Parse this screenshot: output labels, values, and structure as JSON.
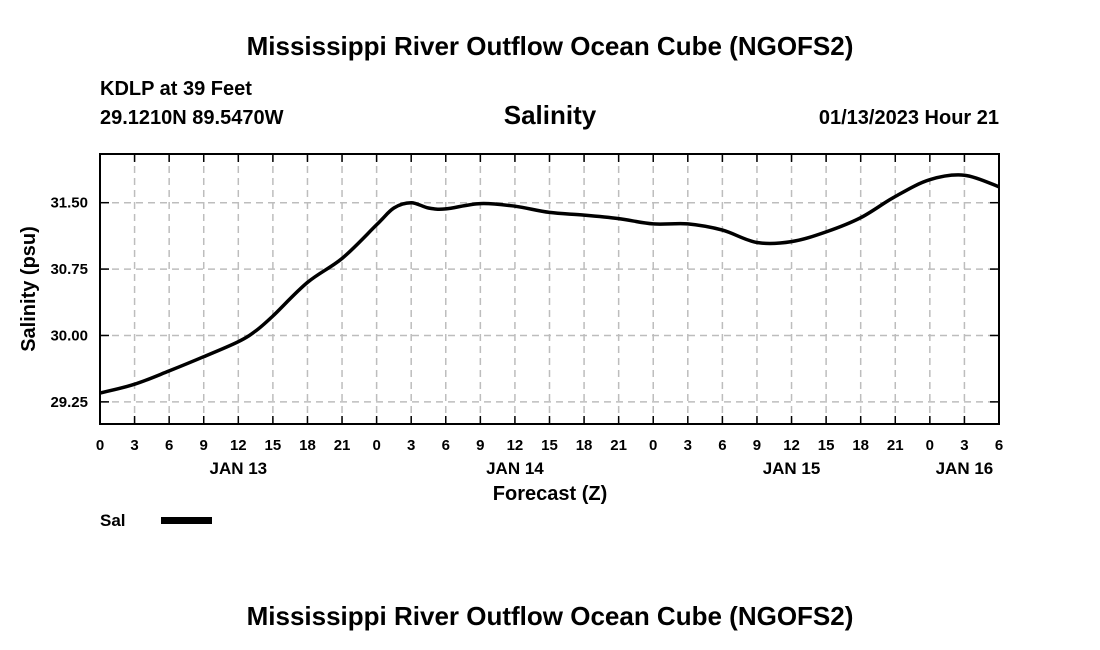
{
  "page": {
    "title": "Mississippi River Outflow Ocean Cube (NGOFS2)",
    "footer_title": "Mississippi River Outflow Ocean Cube (NGOFS2)"
  },
  "station": {
    "name": "KDLP at 39 Feet",
    "coords": "29.1210N  89.5470W",
    "datetime": "01/13/2023 Hour 21"
  },
  "legend": {
    "label": "Sal",
    "color": "#000000"
  },
  "chart_data": {
    "type": "line",
    "title": "Salinity",
    "xlabel": "Forecast (Z)",
    "ylabel": "Salinity (psu)",
    "ylim": [
      29.0,
      32.05
    ],
    "xlim": [
      0,
      78
    ],
    "x_unit": "hours from 00Z Jan 13",
    "yticks": [
      29.25,
      30.0,
      30.75,
      31.5
    ],
    "ytick_labels": [
      "29.25",
      "30.00",
      "30.75",
      "31.50"
    ],
    "xticks": [
      0,
      3,
      6,
      9,
      12,
      15,
      18,
      21,
      24,
      27,
      30,
      33,
      36,
      39,
      42,
      45,
      48,
      51,
      54,
      57,
      60,
      63,
      66,
      69,
      72,
      75,
      78
    ],
    "xtick_labels": [
      "0",
      "3",
      "6",
      "9",
      "12",
      "15",
      "18",
      "21",
      "0",
      "3",
      "6",
      "9",
      "12",
      "15",
      "18",
      "21",
      "0",
      "3",
      "6",
      "9",
      "12",
      "15",
      "18",
      "21",
      "0",
      "3",
      "6"
    ],
    "day_labels": [
      {
        "x": 12,
        "label": "JAN 13"
      },
      {
        "x": 36,
        "label": "JAN 14"
      },
      {
        "x": 60,
        "label": "JAN 15"
      },
      {
        "x": 75,
        "label": "JAN 16"
      }
    ],
    "grid": true,
    "series": [
      {
        "name": "Sal",
        "x": [
          0,
          3,
          6,
          9,
          12,
          13.5,
          15,
          18,
          21,
          24,
          25.5,
          27,
          28.5,
          30,
          33,
          36,
          39,
          42,
          45,
          48,
          51,
          54,
          57,
          60,
          63,
          66,
          69,
          72,
          75,
          78
        ],
        "y": [
          29.35,
          29.45,
          29.6,
          29.76,
          29.93,
          30.05,
          30.22,
          30.6,
          30.87,
          31.25,
          31.44,
          31.5,
          31.44,
          31.43,
          31.49,
          31.46,
          31.39,
          31.36,
          31.32,
          31.26,
          31.26,
          31.19,
          31.05,
          31.06,
          31.17,
          31.33,
          31.57,
          31.76,
          31.81,
          31.68
        ]
      }
    ]
  }
}
